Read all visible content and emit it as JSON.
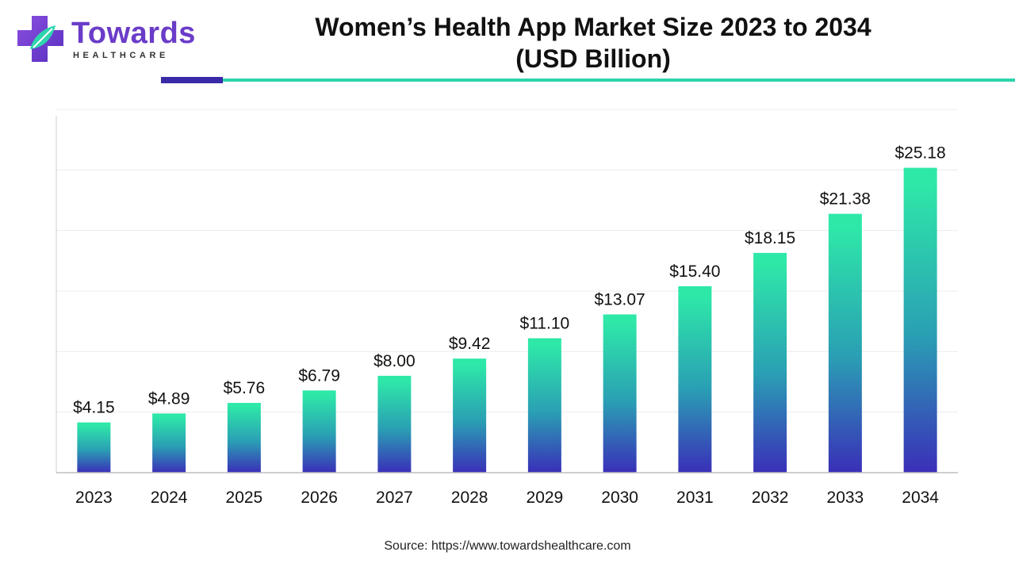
{
  "brand": {
    "name": "Towards",
    "sub": "HEALTHCARE",
    "colors": {
      "primary": "#6a3cc8",
      "accent": "#2dd4ad"
    }
  },
  "title_line1": "Women’s Health App Market Size 2023 to 2034",
  "title_line2": "(USD Billion)",
  "source": "Source: https://www.towardshealthcare.com",
  "chart_data": {
    "type": "bar",
    "title": "Women’s Health App Market Size 2023 to 2034 (USD Billion)",
    "xlabel": "",
    "ylabel": "",
    "categories": [
      "2023",
      "2024",
      "2025",
      "2026",
      "2027",
      "2028",
      "2029",
      "2030",
      "2031",
      "2032",
      "2033",
      "2034"
    ],
    "values": [
      4.15,
      4.89,
      5.76,
      6.79,
      8.0,
      9.42,
      11.1,
      13.07,
      15.4,
      18.15,
      21.38,
      25.18
    ],
    "labels": [
      "$4.15",
      "$4.89",
      "$5.76",
      "$6.79",
      "$8.00",
      "$9.42",
      "$11.10",
      "$13.07",
      "$15.40",
      "$18.15",
      "$21.38",
      "$25.18"
    ],
    "ylim": [
      0,
      30
    ],
    "grid": true,
    "legend": "none",
    "bar_gradient": [
      "#2ee8a8",
      "#3a2fb8"
    ]
  }
}
